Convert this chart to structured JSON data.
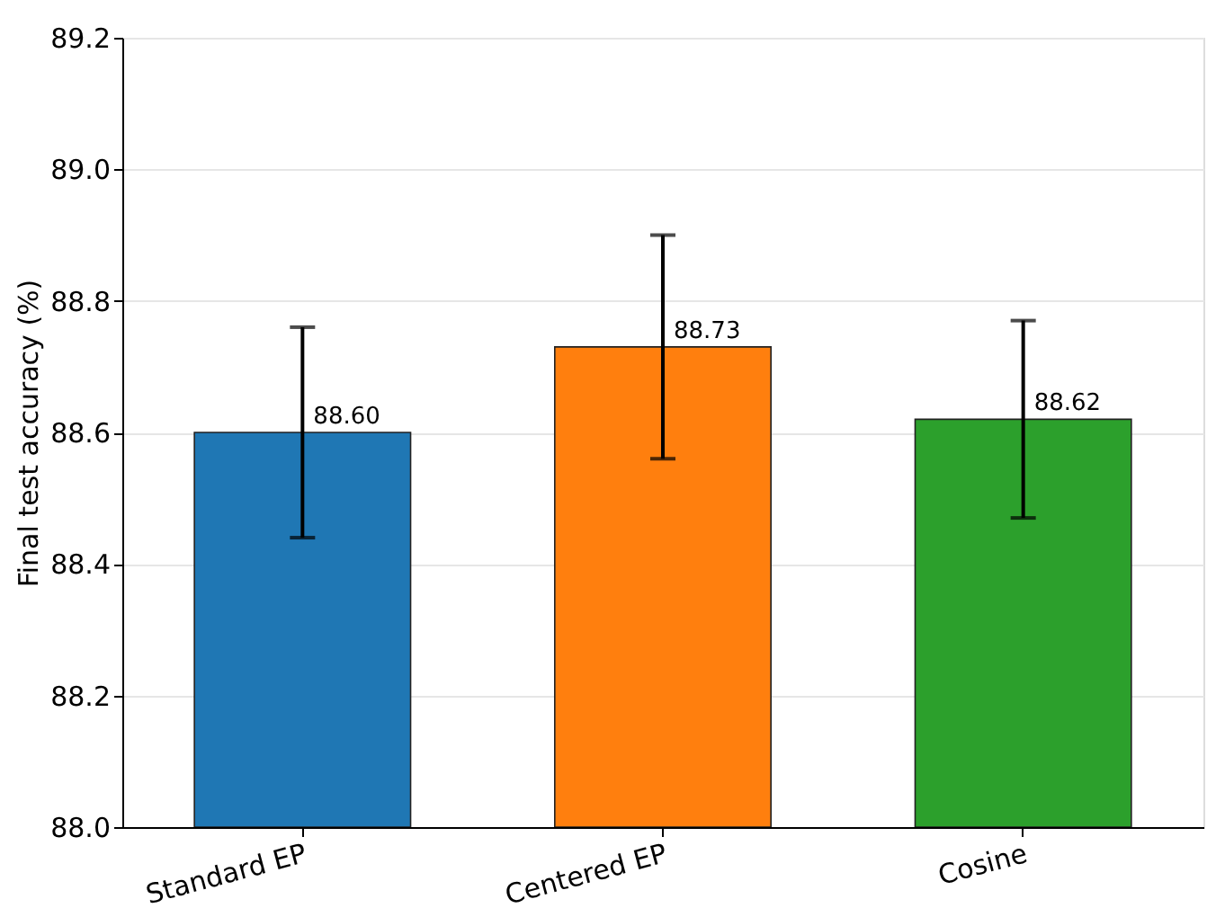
{
  "chart_data": {
    "type": "bar",
    "ylabel": "Final test accuracy (%)",
    "categories": [
      "Standard EP",
      "Centered EP",
      "Cosine"
    ],
    "values": [
      88.6,
      88.73,
      88.62
    ],
    "colors": [
      "#1f77b4",
      "#ff7f0e",
      "#2ca02c"
    ],
    "errors": [
      0.16,
      0.17,
      0.15
    ],
    "value_labels": [
      "88.60",
      "88.73",
      "88.62"
    ],
    "ylim": [
      88.0,
      89.2
    ],
    "yticks": [
      {
        "value": 88.0,
        "label": "88.0"
      },
      88.2,
      88.4,
      88.6,
      88.8,
      {
        "value": 89.0,
        "label": "89.0"
      },
      89.2
    ],
    "grid": "y"
  }
}
